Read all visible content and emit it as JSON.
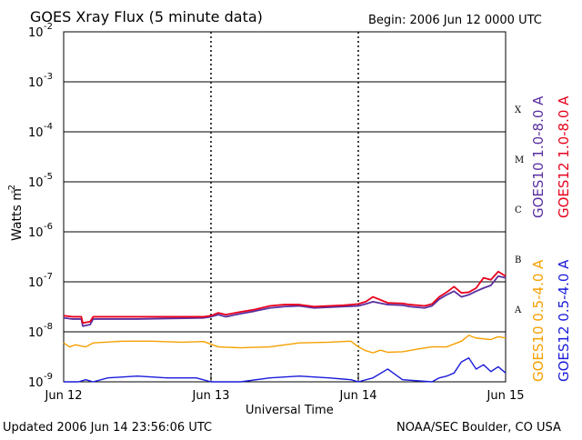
{
  "chart_data": {
    "type": "line",
    "title": "GOES Xray Flux (5 minute data)",
    "begin_label": "Begin:  2006 Jun 12 0000 UTC",
    "xlabel": "Universal Time",
    "ylabel": "Watts m",
    "ylabel_superscript": "-2",
    "y_scale": "log",
    "ylim": [
      1e-09,
      0.01
    ],
    "y_ticks": [
      {
        "base": "10",
        "exp": "-2",
        "value": 0.01
      },
      {
        "base": "10",
        "exp": "-3",
        "value": 0.001
      },
      {
        "base": "10",
        "exp": "-4",
        "value": 0.0001
      },
      {
        "base": "10",
        "exp": "-5",
        "value": 1e-05
      },
      {
        "base": "10",
        "exp": "-6",
        "value": 1e-06
      },
      {
        "base": "10",
        "exp": "-7",
        "value": 1e-07
      },
      {
        "base": "10",
        "exp": "-8",
        "value": 1e-08
      },
      {
        "base": "10",
        "exp": "-9",
        "value": 1e-09
      }
    ],
    "x_ticks": [
      {
        "label": "Jun 12",
        "day": 0
      },
      {
        "label": "Jun 13",
        "day": 1
      },
      {
        "label": "Jun 14",
        "day": 2
      },
      {
        "label": "Jun 15",
        "day": 3
      }
    ],
    "flare_classes": [
      {
        "label": "X",
        "value": 0.0003
      },
      {
        "label": "M",
        "value": 3e-05
      },
      {
        "label": "C",
        "value": 3e-06
      },
      {
        "label": "B",
        "value": 3e-07
      },
      {
        "label": "A",
        "value": 3e-08
      }
    ],
    "grid_lines": [
      0.001,
      0.0001,
      1e-05,
      1e-06,
      1e-07,
      1e-08
    ],
    "legend_placement": "right",
    "series": [
      {
        "name": "GOES10 1.0-8.0 A",
        "color": "#5a2fa0",
        "values": [
          [
            0.0,
            1.9e-08
          ],
          [
            0.06,
            1.8e-08
          ],
          [
            0.12,
            1.8e-08
          ],
          [
            0.13,
            1.3e-08
          ],
          [
            0.18,
            1.4e-08
          ],
          [
            0.2,
            1.8e-08
          ],
          [
            0.5,
            1.8e-08
          ],
          [
            0.95,
            1.9e-08
          ],
          [
            1.0,
            2e-08
          ],
          [
            1.05,
            2.2e-08
          ],
          [
            1.1,
            2e-08
          ],
          [
            1.2,
            2.3e-08
          ],
          [
            1.3,
            2.6e-08
          ],
          [
            1.4,
            3e-08
          ],
          [
            1.5,
            3.2e-08
          ],
          [
            1.6,
            3.3e-08
          ],
          [
            1.7,
            3e-08
          ],
          [
            1.8,
            3.1e-08
          ],
          [
            1.9,
            3.2e-08
          ],
          [
            2.0,
            3.3e-08
          ],
          [
            2.05,
            3.6e-08
          ],
          [
            2.1,
            4e-08
          ],
          [
            2.2,
            3.5e-08
          ],
          [
            2.3,
            3.4e-08
          ],
          [
            2.35,
            3.2e-08
          ],
          [
            2.45,
            3e-08
          ],
          [
            2.5,
            3.3e-08
          ],
          [
            2.55,
            4.5e-08
          ],
          [
            2.6,
            5.5e-08
          ],
          [
            2.65,
            6.5e-08
          ],
          [
            2.7,
            5e-08
          ],
          [
            2.75,
            5.5e-08
          ],
          [
            2.8,
            6.5e-08
          ],
          [
            2.85,
            7.5e-08
          ],
          [
            2.9,
            8.5e-08
          ],
          [
            2.95,
            1.3e-07
          ],
          [
            3.0,
            1.2e-07
          ]
        ]
      },
      {
        "name": "GOES12 1.0-8.0 A",
        "color": "#e8001c",
        "values": [
          [
            0.0,
            2.1e-08
          ],
          [
            0.06,
            2e-08
          ],
          [
            0.12,
            2e-08
          ],
          [
            0.13,
            1.5e-08
          ],
          [
            0.18,
            1.6e-08
          ],
          [
            0.2,
            2e-08
          ],
          [
            0.5,
            2e-08
          ],
          [
            0.95,
            2e-08
          ],
          [
            1.0,
            2.1e-08
          ],
          [
            1.05,
            2.4e-08
          ],
          [
            1.1,
            2.2e-08
          ],
          [
            1.2,
            2.5e-08
          ],
          [
            1.3,
            2.8e-08
          ],
          [
            1.4,
            3.3e-08
          ],
          [
            1.5,
            3.5e-08
          ],
          [
            1.6,
            3.5e-08
          ],
          [
            1.7,
            3.2e-08
          ],
          [
            1.8,
            3.3e-08
          ],
          [
            1.9,
            3.4e-08
          ],
          [
            2.0,
            3.6e-08
          ],
          [
            2.05,
            4e-08
          ],
          [
            2.1,
            5e-08
          ],
          [
            2.2,
            3.8e-08
          ],
          [
            2.3,
            3.7e-08
          ],
          [
            2.35,
            3.5e-08
          ],
          [
            2.45,
            3.3e-08
          ],
          [
            2.5,
            3.6e-08
          ],
          [
            2.55,
            5e-08
          ],
          [
            2.6,
            6.2e-08
          ],
          [
            2.65,
            8e-08
          ],
          [
            2.7,
            6e-08
          ],
          [
            2.75,
            6.2e-08
          ],
          [
            2.8,
            7.5e-08
          ],
          [
            2.85,
            1.2e-07
          ],
          [
            2.9,
            1.1e-07
          ],
          [
            2.95,
            1.6e-07
          ],
          [
            3.0,
            1.3e-07
          ]
        ]
      },
      {
        "name": "GOES10 0.5-4.0 A",
        "color": "#f5a000",
        "values": [
          [
            0.0,
            6e-09
          ],
          [
            0.04,
            5e-09
          ],
          [
            0.08,
            5.5e-09
          ],
          [
            0.15,
            5e-09
          ],
          [
            0.2,
            6e-09
          ],
          [
            0.4,
            6.5e-09
          ],
          [
            0.6,
            6.5e-09
          ],
          [
            0.8,
            6.2e-09
          ],
          [
            0.95,
            6.4e-09
          ],
          [
            1.05,
            5e-09
          ],
          [
            1.2,
            4.8e-09
          ],
          [
            1.4,
            5e-09
          ],
          [
            1.6,
            6e-09
          ],
          [
            1.8,
            6.2e-09
          ],
          [
            1.95,
            6.5e-09
          ],
          [
            2.0,
            5e-09
          ],
          [
            2.05,
            4.2e-09
          ],
          [
            2.1,
            3.8e-09
          ],
          [
            2.15,
            4.3e-09
          ],
          [
            2.2,
            3.9e-09
          ],
          [
            2.3,
            4e-09
          ],
          [
            2.4,
            4.5e-09
          ],
          [
            2.5,
            5e-09
          ],
          [
            2.6,
            5e-09
          ],
          [
            2.7,
            6.5e-09
          ],
          [
            2.75,
            8.5e-09
          ],
          [
            2.8,
            7.5e-09
          ],
          [
            2.9,
            7e-09
          ],
          [
            2.95,
            8e-09
          ],
          [
            3.0,
            7.5e-09
          ]
        ]
      },
      {
        "name": "GOES12 0.5-4.0 A",
        "color": "#1a1adb",
        "values": [
          [
            0.0,
            1e-09
          ],
          [
            0.05,
            1e-09
          ],
          [
            0.1,
            1e-09
          ],
          [
            0.15,
            1.1e-09
          ],
          [
            0.2,
            1e-09
          ],
          [
            0.3,
            1.2e-09
          ],
          [
            0.5,
            1.3e-09
          ],
          [
            0.7,
            1.2e-09
          ],
          [
            0.9,
            1.2e-09
          ],
          [
            1.0,
            1e-09
          ],
          [
            1.2,
            1e-09
          ],
          [
            1.4,
            1.2e-09
          ],
          [
            1.6,
            1.3e-09
          ],
          [
            1.8,
            1.2e-09
          ],
          [
            1.95,
            1.1e-09
          ],
          [
            2.0,
            1e-09
          ],
          [
            2.1,
            1.2e-09
          ],
          [
            2.2,
            1.8e-09
          ],
          [
            2.3,
            1.1e-09
          ],
          [
            2.5,
            1e-09
          ],
          [
            2.55,
            1.2e-09
          ],
          [
            2.6,
            1.3e-09
          ],
          [
            2.65,
            1.5e-09
          ],
          [
            2.7,
            2.5e-09
          ],
          [
            2.75,
            3e-09
          ],
          [
            2.8,
            1.8e-09
          ],
          [
            2.85,
            2.2e-09
          ],
          [
            2.9,
            1.6e-09
          ],
          [
            2.95,
            2e-09
          ],
          [
            3.0,
            1.5e-09
          ]
        ]
      }
    ]
  },
  "footer": {
    "updated": "Updated 2006 Jun 14 23:56:06 UTC",
    "credit": "NOAA/SEC Boulder, CO USA"
  }
}
